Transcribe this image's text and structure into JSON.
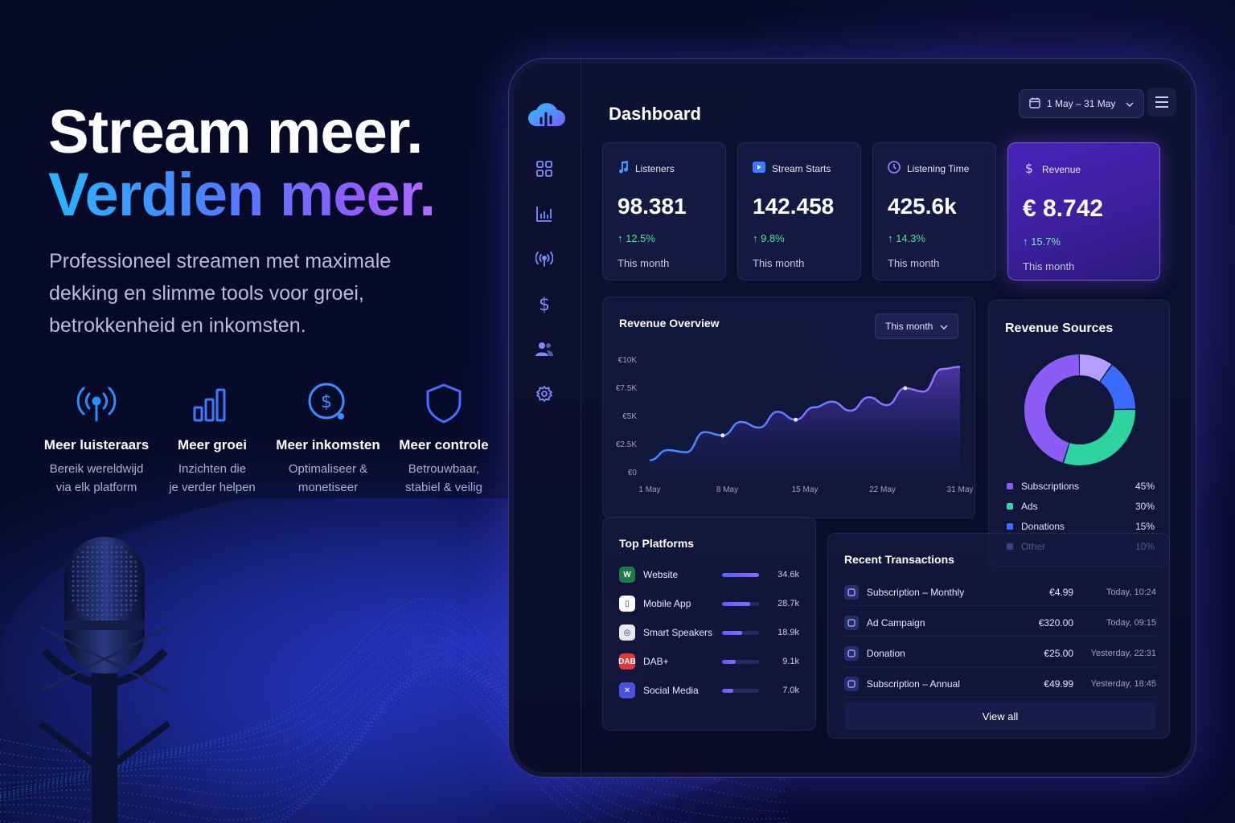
{
  "hero": {
    "line1": "Stream meer.",
    "line2": "Verdien meer.",
    "subtitle": "Professioneel streamen met maximale dekking en slimme tools voor groei, betrokkenheid en inkomsten."
  },
  "features": [
    {
      "icon": "broadcast-icon",
      "title": "Meer luisteraars",
      "desc1": "Bereik wereldwijd",
      "desc2": "via elk platform"
    },
    {
      "icon": "bar-chart-icon",
      "title": "Meer groei",
      "desc1": "Inzichten die",
      "desc2": "je verder helpen"
    },
    {
      "icon": "dollar-circle-icon",
      "title": "Meer inkomsten",
      "desc1": "Optimaliseer &",
      "desc2": "monetiseer"
    },
    {
      "icon": "shield-icon",
      "title": "Meer controle",
      "desc1": "Betrouwbaar,",
      "desc2": "stabiel & veilig"
    }
  ],
  "dashboard": {
    "title": "Dashboard",
    "date_range": "1 May – 31 May",
    "nav": [
      "grid-icon",
      "analytics-icon",
      "broadcast-icon",
      "dollar-icon",
      "users-icon",
      "settings-icon"
    ]
  },
  "stats": [
    {
      "icon": "music-note-icon",
      "label": "Listeners",
      "value": "98.381",
      "delta": "↑ 12.5%",
      "period": "This month"
    },
    {
      "icon": "play-icon",
      "label": "Stream Starts",
      "value": "142.458",
      "delta": "↑ 9.8%",
      "period": "This month"
    },
    {
      "icon": "clock-icon",
      "label": "Listening Time",
      "value": "425.6k",
      "delta": "↑ 14.3%",
      "period": "This month"
    },
    {
      "icon": "revenue-icon",
      "label": "Revenue",
      "value": "€ 8.742",
      "delta": "↑ 15.7%",
      "period": "This month"
    }
  ],
  "revenue_overview": {
    "title": "Revenue Overview",
    "period": "This month"
  },
  "chart_data": {
    "type": "area",
    "title": "Revenue Overview",
    "x": [
      "1 May",
      "3 May",
      "5 May",
      "7 May",
      "8 May",
      "10 May",
      "12 May",
      "14 May",
      "15 May",
      "17 May",
      "19 May",
      "21 May",
      "22 May",
      "24 May",
      "26 May",
      "28 May",
      "29 May",
      "31 May"
    ],
    "x_ticks": [
      "1 May",
      "8 May",
      "15 May",
      "22 May",
      "31 May"
    ],
    "y_ticks": [
      "€0",
      "€2.5K",
      "€5K",
      "€7.5K",
      "€10K"
    ],
    "values": [
      1100,
      2000,
      1800,
      3600,
      3300,
      4500,
      4000,
      5400,
      4700,
      5800,
      6300,
      5500,
      6700,
      6000,
      7500,
      7200,
      9200,
      9400
    ],
    "ylim": [
      0,
      10000
    ],
    "xlabel": "",
    "ylabel": "",
    "color": "#8a5cff"
  },
  "revenue_sources": {
    "title": "Revenue Sources",
    "items": [
      {
        "name": "Subscriptions",
        "pct": "45%",
        "value": 45,
        "color": "#8b5cf6"
      },
      {
        "name": "Ads",
        "pct": "30%",
        "value": 30,
        "color": "#2dd4a0"
      },
      {
        "name": "Donations",
        "pct": "15%",
        "value": 15,
        "color": "#3b6bff"
      },
      {
        "name": "Other",
        "pct": "10%",
        "value": 10,
        "color": "#b79cff"
      }
    ]
  },
  "top_platforms": {
    "title": "Top Platforms",
    "items": [
      {
        "name": "Website",
        "value": "34.6k",
        "share": 1.0,
        "icon_bg": "#1f7a4a",
        "icon": "W"
      },
      {
        "name": "Mobile App",
        "value": "28.7k",
        "share": 0.75,
        "icon_bg": "#ffffff",
        "icon": "▯"
      },
      {
        "name": "Smart Speakers",
        "value": "18.9k",
        "share": 0.55,
        "icon_bg": "#e8e8f0",
        "icon": "◎"
      },
      {
        "name": "DAB+",
        "value": "9.1k",
        "share": 0.38,
        "icon_bg": "#e0383e",
        "icon": "DAB"
      },
      {
        "name": "Social Media",
        "value": "7.0k",
        "share": 0.3,
        "icon_bg": "#4a52e0",
        "icon": "✕"
      }
    ]
  },
  "transactions": {
    "title": "Recent Transactions",
    "view_all": "View all",
    "items": [
      {
        "name": "Subscription – Monthly",
        "amount": "€4.99",
        "time": "Today, 10:24"
      },
      {
        "name": "Ad Campaign",
        "amount": "€320.00",
        "time": "Today, 09:15"
      },
      {
        "name": "Donation",
        "amount": "€25.00",
        "time": "Yesterday, 22:31"
      },
      {
        "name": "Subscription – Annual",
        "amount": "€49.99",
        "time": "Yesterday, 18:45"
      }
    ]
  }
}
